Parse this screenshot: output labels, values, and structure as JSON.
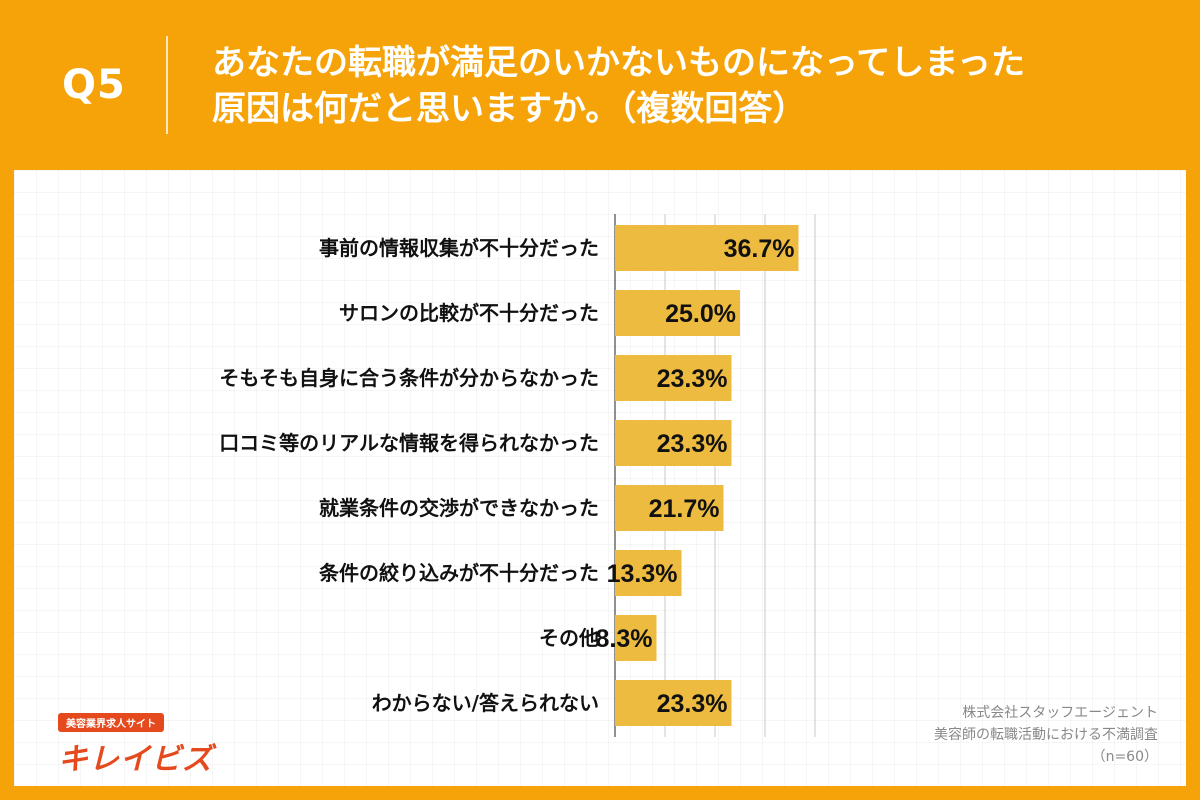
{
  "header": {
    "question_label": "Q5",
    "title_line1": "あなたの転職が満足のいかないものになってしまった",
    "title_line2": "原因は何だと思いますか。（複数回答）"
  },
  "footer": {
    "company": "株式会社スタッフエージェント",
    "survey": "美容師の転職活動における不満調査",
    "sample": "（n=60）"
  },
  "logo": {
    "tagline": "美容業界求人サイト",
    "name": "キレイビズ"
  },
  "colors": {
    "background": "#F5A309",
    "bar": "#EDBB3F",
    "logo": "#E54A1F"
  },
  "chart_data": {
    "type": "bar",
    "orientation": "horizontal",
    "categories": [
      "事前の情報収集が不十分だった",
      "サロンの比較が不十分だった",
      "そもそも自身に合う条件が分からなかった",
      "口コミ等のリアルな情報を得られなかった",
      "就業条件の交渉ができなかった",
      "条件の絞り込みが不十分だった",
      "その他",
      "わからない/答えられない"
    ],
    "values": [
      36.7,
      25.0,
      23.3,
      23.3,
      21.7,
      13.3,
      8.3,
      23.3
    ],
    "value_labels": [
      "36.7%",
      "25.0%",
      "23.3%",
      "23.3%",
      "21.7%",
      "13.3%",
      "8.3%",
      "23.3%"
    ],
    "xlim": [
      0,
      40
    ],
    "gridlines": true
  }
}
